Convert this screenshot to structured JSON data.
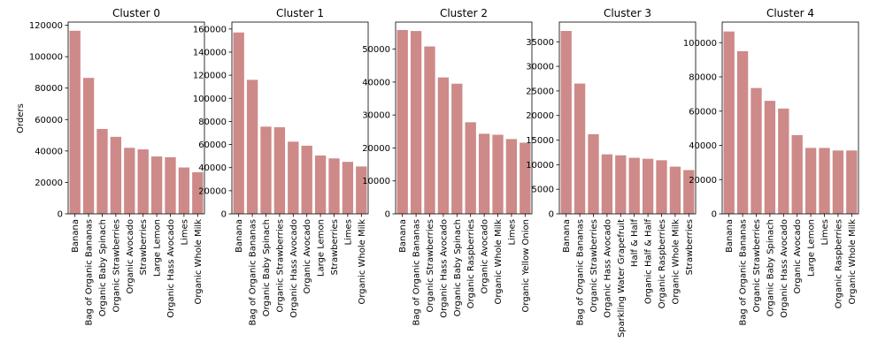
{
  "figure": {
    "ylabel": "Orders",
    "bar_color": "#cd8a88"
  },
  "chart_data": [
    {
      "type": "bar",
      "title": "Cluster 0",
      "categories": [
        "Banana",
        "Bag of Organic Bananas",
        "Organic Baby Spinach",
        "Organic Strawberries",
        "Organic Avocado",
        "Strawberries",
        "Large Lemon",
        "Organic Hass Avocado",
        "Limes",
        "Organic Whole Milk"
      ],
      "values": [
        116500,
        86500,
        54000,
        49000,
        42000,
        41000,
        36500,
        36000,
        29500,
        26500
      ],
      "ylim": [
        0,
        122000
      ],
      "yticks": [
        0,
        20000,
        40000,
        60000,
        80000,
        100000,
        120000
      ]
    },
    {
      "type": "bar",
      "title": "Cluster 1",
      "categories": [
        "Banana",
        "Bag of Organic Bananas",
        "Organic Baby Spinach",
        "Organic Strawberries",
        "Organic Hass Avocado",
        "Organic Avocado",
        "Large Lemon",
        "Strawberries",
        "Limes",
        "Organic Whole Milk"
      ],
      "values": [
        157000,
        116000,
        75500,
        75000,
        62500,
        59000,
        50500,
        48000,
        45000,
        41000
      ],
      "ylim": [
        0,
        166000
      ],
      "yticks": [
        0,
        20000,
        40000,
        60000,
        80000,
        100000,
        120000,
        140000,
        160000
      ]
    },
    {
      "type": "bar",
      "title": "Cluster 2",
      "categories": [
        "Banana",
        "Bag of Organic Bananas",
        "Organic Strawberries",
        "Organic Hass Avocado",
        "Organic Baby Spinach",
        "Organic Raspberries",
        "Organic Avocado",
        "Organic Whole Milk",
        "Limes",
        "Organic Yellow Onion"
      ],
      "values": [
        55800,
        55500,
        50800,
        41400,
        39500,
        27800,
        24300,
        24000,
        22700,
        21600
      ],
      "ylim": [
        0,
        58200
      ],
      "yticks": [
        0,
        10000,
        20000,
        30000,
        40000,
        50000
      ]
    },
    {
      "type": "bar",
      "title": "Cluster 3",
      "categories": [
        "Banana",
        "Bag of Organic Bananas",
        "Organic Strawberries",
        "Organic Hass Avocado",
        "Sparkling Water Grapefruit",
        "Half & Half",
        "Organic Half & Half",
        "Organic Raspberries",
        "Organic Whole Milk",
        "Strawberries"
      ],
      "values": [
        37200,
        26500,
        16200,
        12100,
        11900,
        11400,
        11200,
        10900,
        9600,
        8900
      ],
      "ylim": [
        0,
        39000
      ],
      "yticks": [
        0,
        5000,
        10000,
        15000,
        20000,
        25000,
        30000,
        35000
      ]
    },
    {
      "type": "bar",
      "title": "Cluster 4",
      "categories": [
        "Banana",
        "Bag of Organic Bananas",
        "Organic Strawberries",
        "Organic Baby Spinach",
        "Organic Hass Avocado",
        "Organic Avocado",
        "Large Lemon",
        "Limes",
        "Organic Raspberries",
        "Organic Whole Milk"
      ],
      "values": [
        106500,
        95000,
        73500,
        66000,
        61500,
        46000,
        38500,
        38500,
        37000,
        37000
      ],
      "ylim": [
        0,
        112000
      ],
      "yticks": [
        0,
        20000,
        40000,
        60000,
        80000,
        100000
      ]
    }
  ]
}
